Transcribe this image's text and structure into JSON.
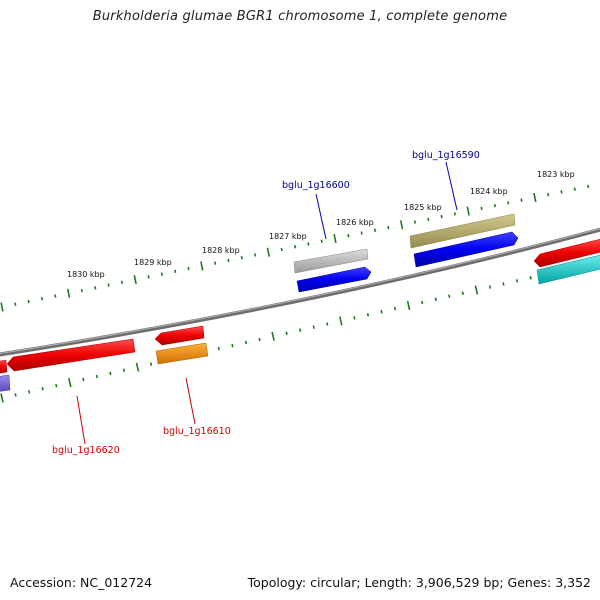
{
  "title": "Burkholderia glumae BGR1 chromosome 1, complete genome",
  "footer": {
    "accession": "Accession: NC_012724",
    "summary": "Topology: circular; Length: 3,906,529 bp; Genes: 3,352"
  },
  "ruler": {
    "labels": [
      "1830 kbp",
      "1829 kbp",
      "1828 kbp",
      "1827 kbp",
      "1826 kbp",
      "1825 kbp",
      "1824 kbp",
      "1823 kbp"
    ]
  },
  "genes": [
    {
      "locus": "bglu_1g16620",
      "strand": "minus",
      "color": "#cc0000",
      "labeled": true
    },
    {
      "locus": "bglu_1g16610",
      "strand": "minus",
      "color": "#cc0000",
      "labeled": true
    },
    {
      "locus": "bglu_1g16600",
      "strand": "plus",
      "color": "#00008b",
      "labeled": true
    },
    {
      "locus": "bglu_1g16590",
      "strand": "plus",
      "color": "#00008b",
      "labeled": true
    }
  ],
  "colors": {
    "backbone": "#808080",
    "ticks": "#1e7a1e",
    "forward_gene": "#0000ee",
    "reverse_gene": "#ee0000",
    "rna_gray": "#b4b4b4",
    "rna_olive": "#b4aa6e",
    "rna_orange": "#ff8c00",
    "rna_cyan": "#00c8c8",
    "purple": "#6a5acd"
  }
}
